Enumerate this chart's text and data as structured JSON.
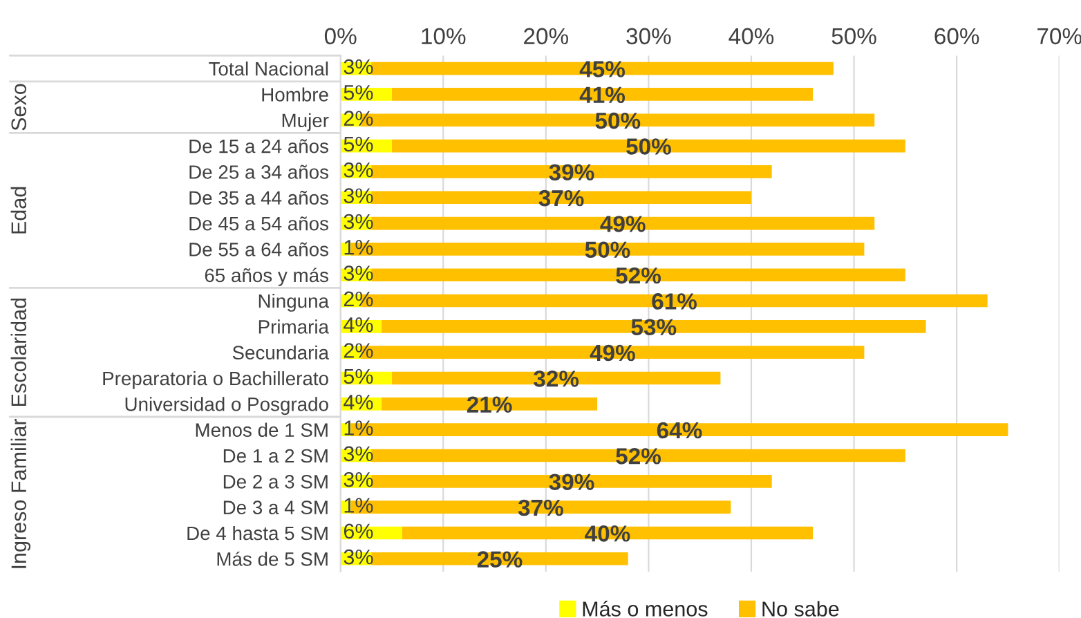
{
  "chart_data": {
    "type": "bar",
    "orientation": "horizontal",
    "stacked": true,
    "categories": [
      "Total Nacional",
      "Hombre",
      "Mujer",
      "De 15 a 24 años",
      "De 25 a 34 años",
      "De 35 a 44 años",
      "De 45 a 54 años",
      "De 55 a 64 años",
      "65 años y más",
      "Ninguna",
      "Primaria",
      "Secundaria",
      "Preparatoria o Bachillerato",
      "Universidad o Posgrado",
      "Menos de 1 SM",
      "De 1 a 2 SM",
      "De 2 a 3 SM",
      "De 3 a 4 SM",
      "De 4 hasta 5 SM",
      "Más de 5 SM"
    ],
    "series": [
      {
        "name": "Más o menos",
        "color": "#ffff00",
        "values": [
          3,
          5,
          2,
          5,
          3,
          3,
          3,
          1,
          3,
          2,
          4,
          2,
          5,
          4,
          1,
          3,
          3,
          1,
          6,
          3
        ],
        "value_labels": [
          "3%",
          "5%",
          "2%",
          "5%",
          "3%",
          "3%",
          "3%",
          "1%",
          "3%",
          "2%",
          "4%",
          "2%",
          "5%",
          "4%",
          "1%",
          "3%",
          "3%",
          "1%",
          "6%",
          "3%"
        ]
      },
      {
        "name": "No sabe",
        "color": "#ffc000",
        "values": [
          45,
          41,
          50,
          50,
          39,
          37,
          49,
          50,
          52,
          61,
          53,
          49,
          32,
          21,
          64,
          52,
          39,
          37,
          40,
          25
        ],
        "value_labels": [
          "45%",
          "41%",
          "50%",
          "50%",
          "39%",
          "37%",
          "49%",
          "50%",
          "52%",
          "61%",
          "53%",
          "49%",
          "32%",
          "21%",
          "64%",
          "52%",
          "39%",
          "37%",
          "40%",
          "25%"
        ]
      }
    ],
    "xlim": [
      0,
      70
    ],
    "xticks": [
      {
        "value": 0,
        "label": "0%"
      },
      {
        "value": 10,
        "label": "10%"
      },
      {
        "value": 20,
        "label": "20%"
      },
      {
        "value": 30,
        "label": "30%"
      },
      {
        "value": 40,
        "label": "40%"
      },
      {
        "value": 50,
        "label": "50%"
      },
      {
        "value": 60,
        "label": "60%"
      },
      {
        "value": 70,
        "label": "70%"
      }
    ],
    "annotations": [
      "Sexo",
      "Edad",
      "Escolaridad",
      "Ingreso Familiar"
    ],
    "grid": "x",
    "legend": "bottom"
  }
}
